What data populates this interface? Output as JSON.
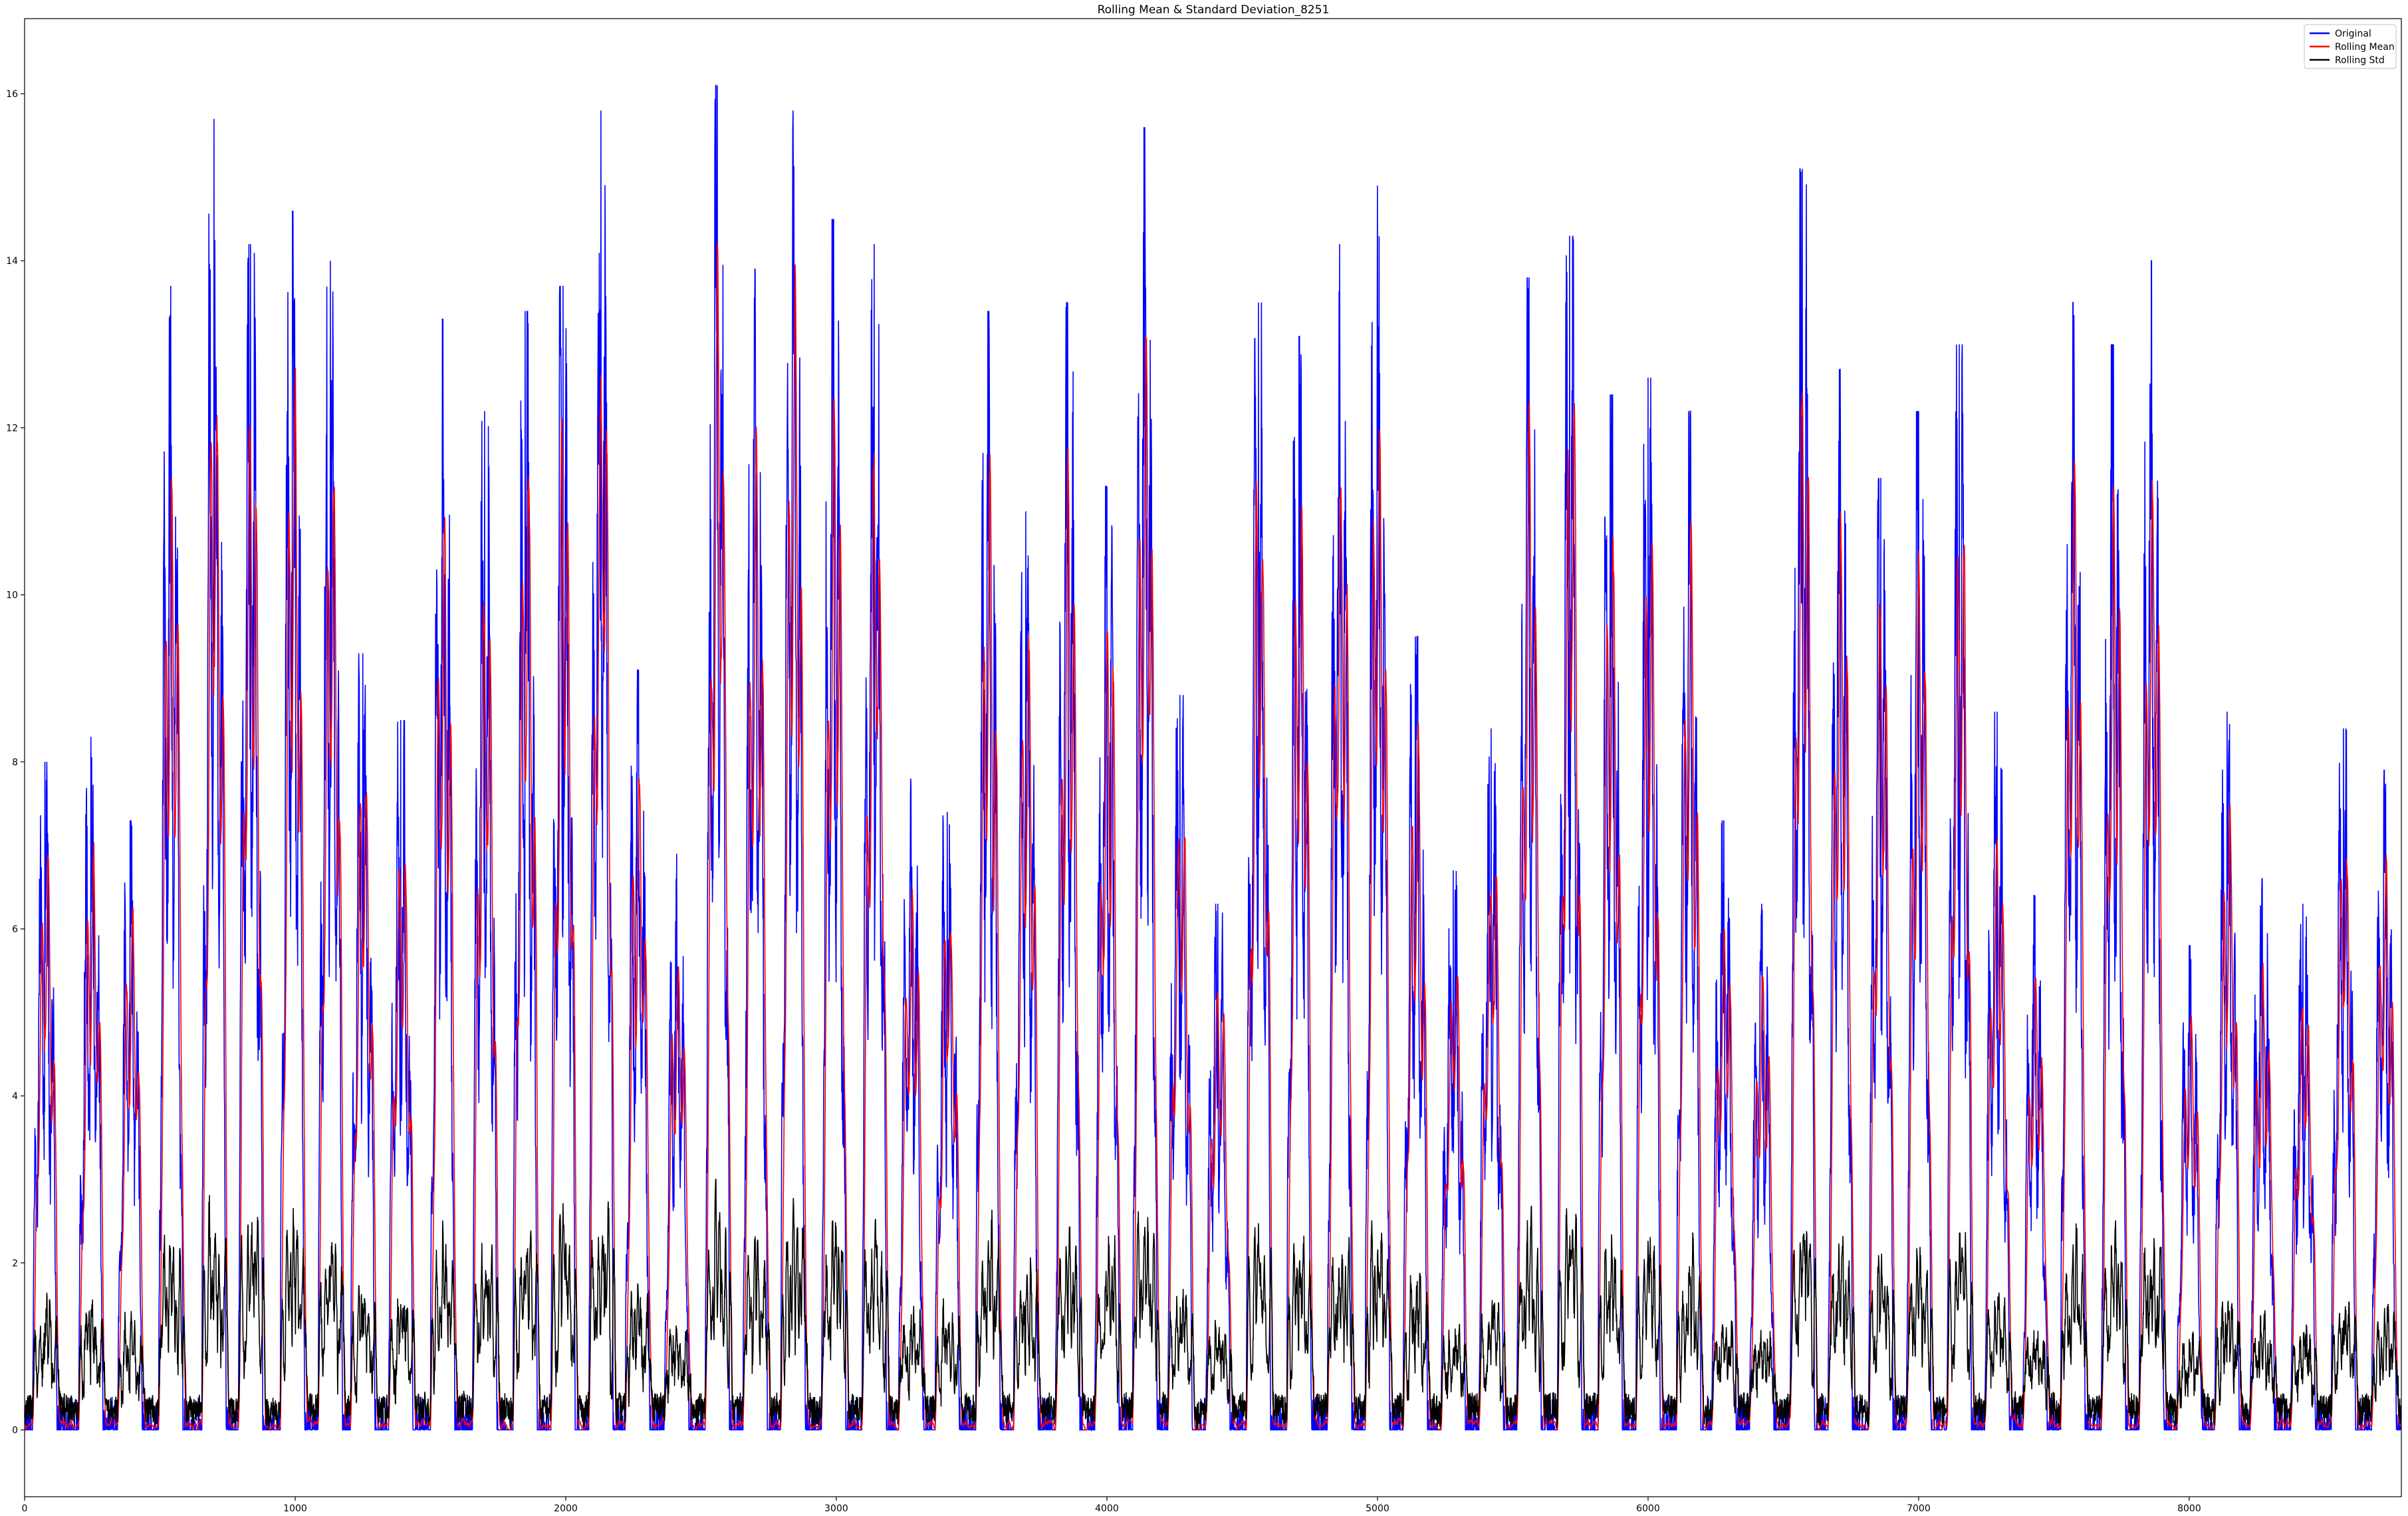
{
  "chart_data": {
    "type": "line",
    "title": "Rolling Mean & Standard Deviation_8251",
    "xlabel": "",
    "ylabel": "",
    "xlim": [
      0,
      8784
    ],
    "ylim": [
      -0.8,
      16.9
    ],
    "xticks": [
      0,
      1000,
      2000,
      3000,
      4000,
      5000,
      6000,
      7000,
      8000
    ],
    "yticks": [
      0,
      2,
      4,
      6,
      8,
      10,
      12,
      14,
      16
    ],
    "grid": false,
    "legend": "top-right",
    "n_points": 8784,
    "series": [
      {
        "name": "Original",
        "color": "#0000ff"
      },
      {
        "name": "Rolling Mean",
        "color": "#ff0000"
      },
      {
        "name": "Rolling Std",
        "color": "#000000"
      }
    ],
    "period_peaks": [
      [
        75,
        8.0
      ],
      [
        245,
        8.3
      ],
      [
        390,
        7.3
      ],
      [
        540,
        13.7
      ],
      [
        700,
        15.7
      ],
      [
        835,
        14.2
      ],
      [
        990,
        14.6
      ],
      [
        1130,
        14.0
      ],
      [
        1250,
        9.3
      ],
      [
        1390,
        8.5
      ],
      [
        1545,
        13.3
      ],
      [
        1700,
        12.2
      ],
      [
        1850,
        13.4
      ],
      [
        1990,
        13.7
      ],
      [
        2130,
        15.8
      ],
      [
        2265,
        9.1
      ],
      [
        2410,
        6.9
      ],
      [
        2560,
        16.1
      ],
      [
        2700,
        13.9
      ],
      [
        2840,
        15.8
      ],
      [
        2990,
        14.5
      ],
      [
        3140,
        14.2
      ],
      [
        3275,
        7.8
      ],
      [
        3410,
        7.4
      ],
      [
        3560,
        13.4
      ],
      [
        3700,
        11.0
      ],
      [
        3855,
        13.5
      ],
      [
        4000,
        11.3
      ],
      [
        4140,
        15.6
      ],
      [
        4270,
        8.8
      ],
      [
        4410,
        6.3
      ],
      [
        4560,
        13.5
      ],
      [
        4710,
        13.1
      ],
      [
        4860,
        14.2
      ],
      [
        5000,
        14.9
      ],
      [
        5140,
        9.5
      ],
      [
        5280,
        6.7
      ],
      [
        5420,
        8.4
      ],
      [
        5560,
        13.8
      ],
      [
        5710,
        14.3
      ],
      [
        5860,
        12.4
      ],
      [
        6000,
        12.6
      ],
      [
        6150,
        12.2
      ],
      [
        6280,
        7.3
      ],
      [
        6420,
        6.3
      ],
      [
        6570,
        15.1
      ],
      [
        6710,
        12.7
      ],
      [
        6860,
        11.4
      ],
      [
        7000,
        12.2
      ],
      [
        7150,
        13.0
      ],
      [
        7290,
        8.6
      ],
      [
        7430,
        6.4
      ],
      [
        7570,
        13.5
      ],
      [
        7720,
        13.0
      ],
      [
        7860,
        14.0
      ],
      [
        8000,
        5.8
      ],
      [
        8140,
        8.6
      ],
      [
        8270,
        6.6
      ],
      [
        8420,
        6.3
      ],
      [
        8570,
        8.4
      ],
      [
        8720,
        7.9
      ]
    ]
  }
}
